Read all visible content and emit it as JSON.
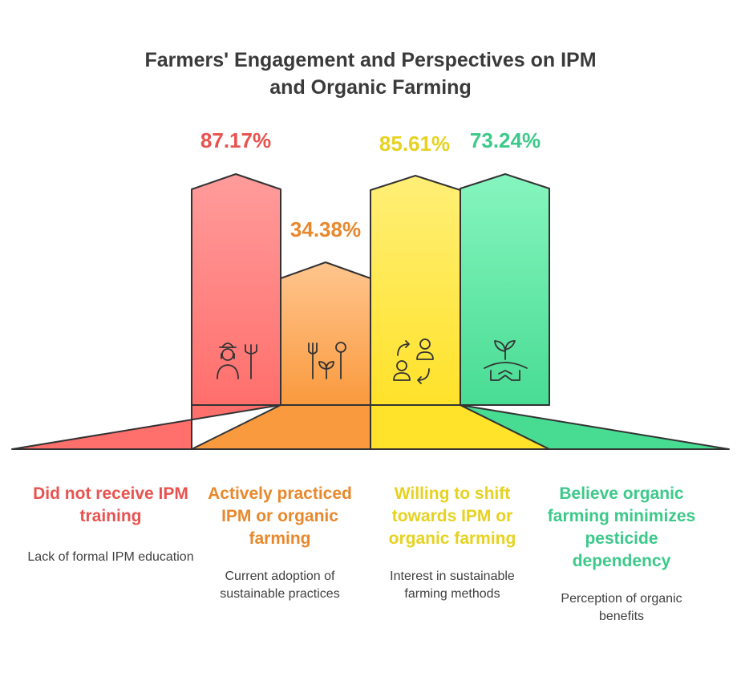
{
  "title": {
    "line1": "Farmers' Engagement and Perspectives on IPM",
    "line2": "and Organic Farming"
  },
  "colors": {
    "red": "#e8524f",
    "orange": "#e8882c",
    "yellow": "#e6d21f",
    "green": "#3cc98a",
    "outline": "#333333"
  },
  "chart_data": {
    "type": "bar",
    "categories": [
      "Did not receive IPM training",
      "Actively practiced IPM or organic farming",
      "Willing to shift towards IPM or organic farming",
      "Believe organic farming minimizes pesticide dependency"
    ],
    "values": [
      87.17,
      34.38,
      85.61,
      73.24
    ],
    "unit": "%"
  },
  "bars": [
    {
      "percent": "87.17%",
      "heading": "Did not receive IPM training",
      "description": "Lack of formal IPM education",
      "icon": "farmer-pitchfork-icon"
    },
    {
      "percent": "34.38%",
      "heading": "Actively practiced IPM or organic farming",
      "description": "Current adoption of sustainable practices",
      "icon": "fork-plant-shovel-icon"
    },
    {
      "percent": "85.61%",
      "heading": "Willing to shift towards IPM or organic farming",
      "description": "Interest in sustainable farming methods",
      "icon": "people-exchange-icon"
    },
    {
      "percent": "73.24%",
      "heading": "Believe organic farming minimizes pesticide dependency",
      "description": "Perception of organic benefits",
      "icon": "handshake-sprout-icon"
    }
  ]
}
